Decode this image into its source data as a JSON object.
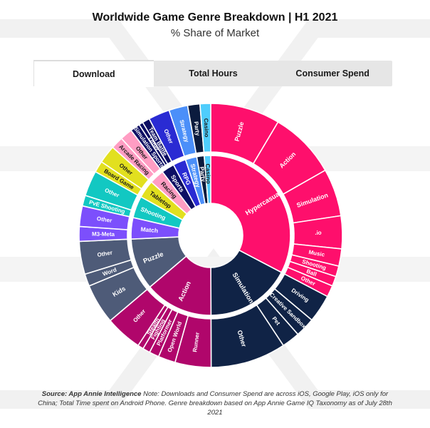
{
  "header": {
    "title": "Worldwide Game Genre Breakdown | H1 2021",
    "subtitle": "% Share of Market"
  },
  "tabs": [
    {
      "label": "Download",
      "active": true
    },
    {
      "label": "Total Hours",
      "active": false
    },
    {
      "label": "Consumer Spend",
      "active": false
    }
  ],
  "footnote": {
    "source": "Source: App Annie Intelligence",
    "note": "Note: Downloads and Consumer Spend are across iOS, Google Play, iOS only for China; Total Time spent on Android Phone. Genre breakdown based  on App Annie Game IQ Taxonomy as of July 28th 2021"
  },
  "chart_data": {
    "type": "sunburst",
    "title": "Worldwide Game Genre Breakdown | H1 2021",
    "subtitle": "% Share of Market",
    "unit": "% share of market (estimated from slice angles)",
    "categories": [
      {
        "name": "Hypercasual",
        "color": "#fe0f6c",
        "value": 32.5,
        "children": [
          {
            "name": "Puzzle",
            "value": 8.5
          },
          {
            "name": "Action",
            "value": 8.2
          },
          {
            "name": "Simulation",
            "value": 5.8
          },
          {
            "name": ".io",
            "value": 4.0
          },
          {
            "name": "Music",
            "value": 2.1
          },
          {
            "name": "Shooting",
            "value": 1.3
          },
          {
            "name": "Ball",
            "value": 1.2
          },
          {
            "name": "Other",
            "value": 1.4
          }
        ]
      },
      {
        "name": "Simulation",
        "color": "#102346",
        "value": 17.2,
        "children": [
          {
            "name": "Driving",
            "value": 3.4
          },
          {
            "name": "Creative Sandbox",
            "value": 2.4
          },
          {
            "name": "Pet",
            "value": 2.2
          },
          {
            "name": "Other",
            "value": 9.2
          }
        ]
      },
      {
        "name": "Action",
        "color": "#b0066b",
        "value": 13.8,
        "children": [
          {
            "name": "Runner",
            "value": 4.4
          },
          {
            "name": "Open World",
            "value": 2.1
          },
          {
            "name": "Platformer",
            "value": 1.2
          },
          {
            "name": "Fighting",
            "value": 0.9
          },
          {
            "name": "Stealth",
            "value": 0.7
          },
          {
            "name": "Other",
            "value": 4.5
          }
        ]
      },
      {
        "name": "Puzzle",
        "color": "#4e5b78",
        "value": 10.4,
        "children": [
          {
            "name": "Kids",
            "value": 4.9
          },
          {
            "name": "Word",
            "value": 1.5
          },
          {
            "name": "Other",
            "value": 4.0
          }
        ]
      },
      {
        "name": "Match",
        "color": "#7c4ffc",
        "value": 4.3,
        "children": [
          {
            "name": "M3-Meta",
            "value": 1.8
          },
          {
            "name": "Other",
            "value": 2.5
          }
        ]
      },
      {
        "name": "Shooting",
        "color": "#12c8c2",
        "value": 4.4,
        "children": [
          {
            "name": "PvE Shooting",
            "value": 1.3
          },
          {
            "name": "Other",
            "value": 3.1
          }
        ]
      },
      {
        "name": "Tabletop",
        "color": "#e2e01f",
        "value": 3.6,
        "children": [
          {
            "name": "Board Game",
            "value": 1.4
          },
          {
            "name": "Other",
            "value": 2.2
          }
        ]
      },
      {
        "name": "Racing",
        "color": "#ff9dc3",
        "value": 3.0,
        "children": [
          {
            "name": "Arcade Racing",
            "value": 1.5
          },
          {
            "name": "Other",
            "value": 1.5
          }
        ]
      },
      {
        "name": "Sports",
        "color": "#0d0e63",
        "value": 2.6,
        "children": [
          {
            "name": "Simulation Sports",
            "value": 1.2
          },
          {
            "name": "Other",
            "value": 0.5
          },
          {
            "name": "Team Battle",
            "value": 0.9
          }
        ]
      },
      {
        "name": "RPG",
        "color": "#2a2bd3",
        "value": 2.6,
        "children": [
          {
            "name": "Other",
            "value": 2.6
          }
        ]
      },
      {
        "name": "Strategy",
        "color": "#4b8ff9",
        "value": 2.3,
        "children": [
          {
            "name": "Strategy",
            "value": 2.3
          }
        ]
      },
      {
        "name": "Party",
        "color": "#0b1b3e",
        "value": 1.5,
        "children": [
          {
            "name": "Party",
            "value": 1.5
          }
        ]
      },
      {
        "name": "Casino",
        "color": "#4fcdfc",
        "value": 1.3,
        "children": [
          {
            "name": "Casino",
            "value": 1.3
          }
        ]
      }
    ]
  }
}
